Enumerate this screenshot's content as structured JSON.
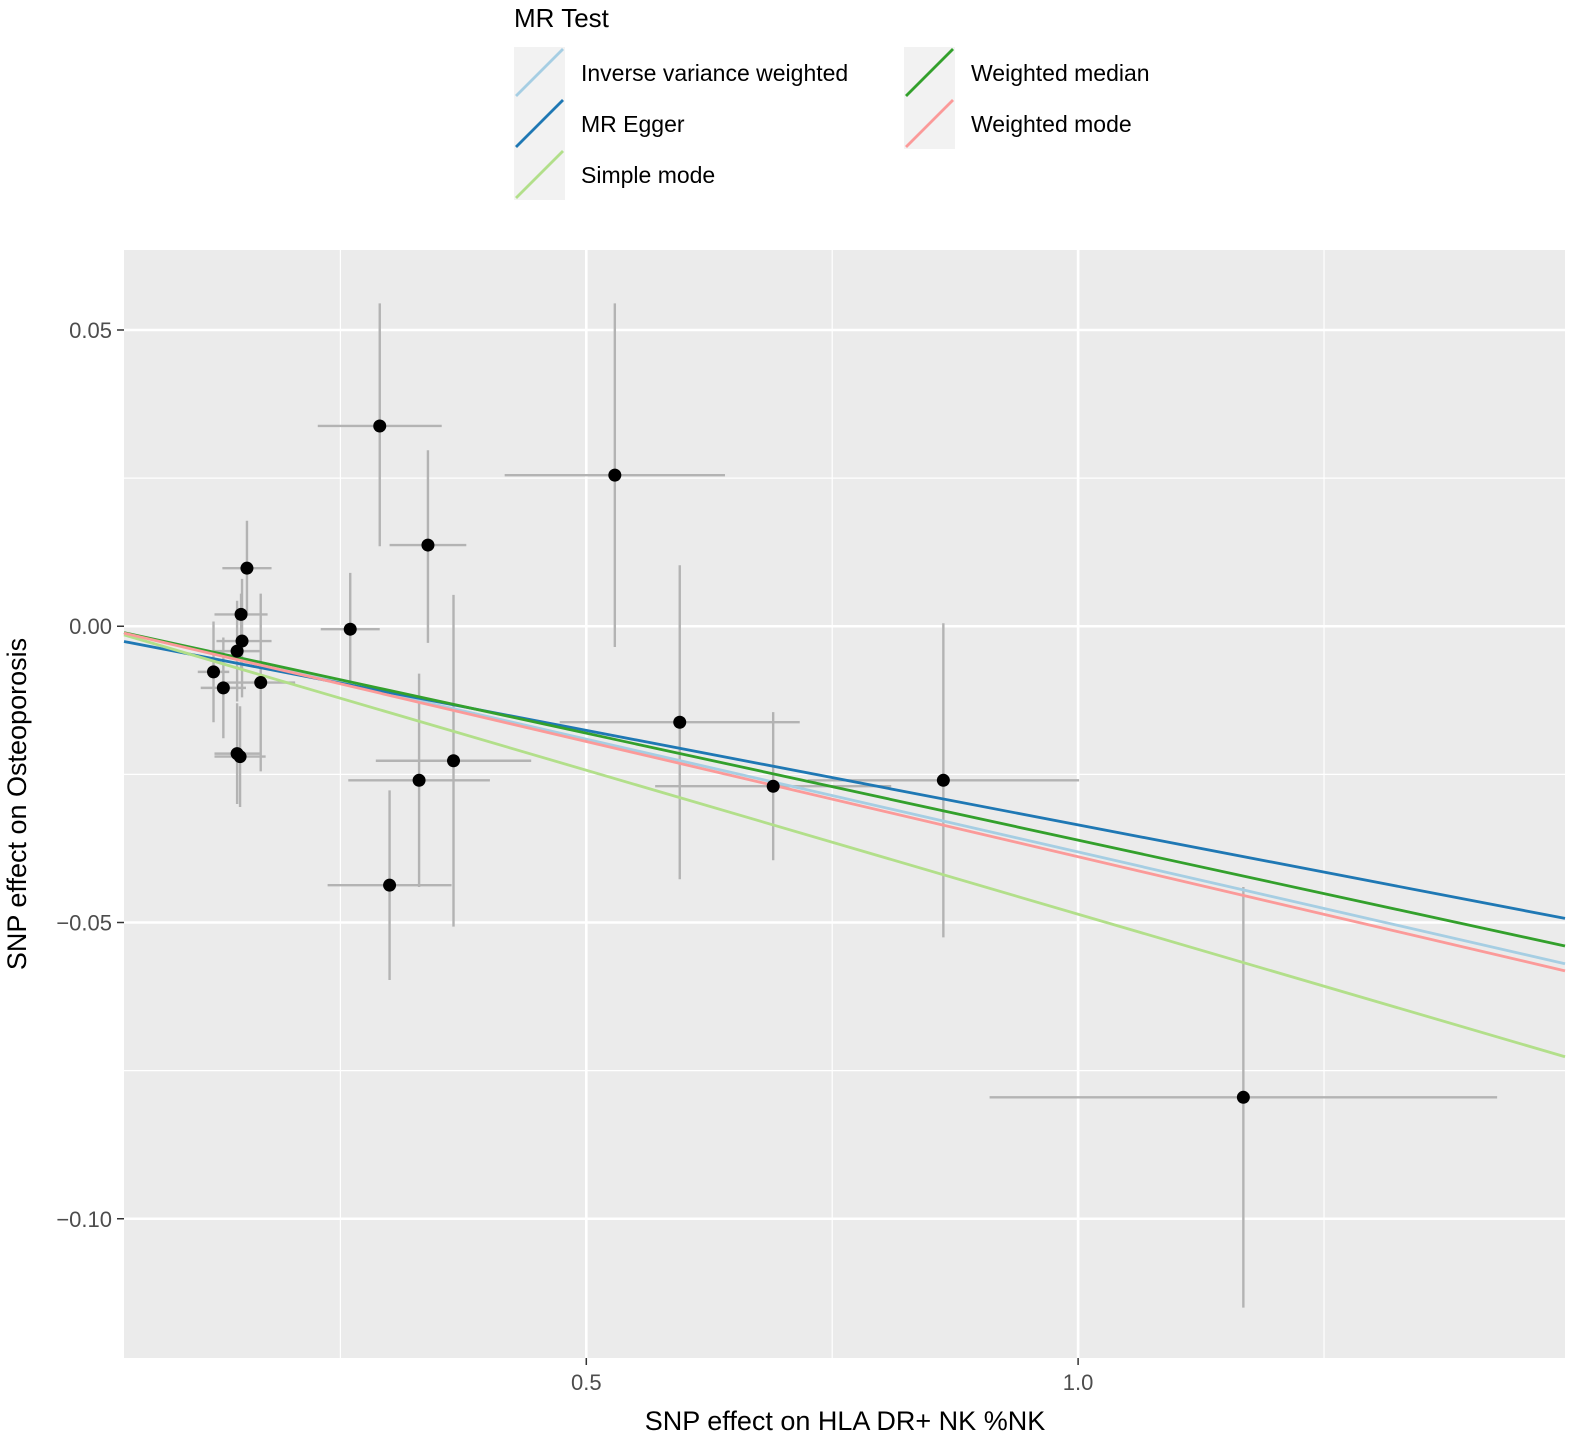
{
  "chart_data": {
    "type": "scatter",
    "title": "",
    "xlabel": "SNP effect on HLA DR+ NK %NK",
    "ylabel": "SNP effect on Osteoporosis",
    "xlim": [
      0.03,
      1.495
    ],
    "ylim": [
      -0.1235,
      0.0635
    ],
    "xticks": [
      0.5,
      1.0
    ],
    "xtick_labels": [
      "0.5",
      "1.0"
    ],
    "yticks": [
      0.05,
      0.0,
      -0.05,
      -0.1
    ],
    "ytick_labels": [
      "0.05",
      "0.00",
      "−0.05",
      "−0.10"
    ],
    "grid": true,
    "legend": {
      "title": "MR Test",
      "position": "top",
      "items": [
        {
          "label": "Inverse variance weighted",
          "color": "#a6cee3"
        },
        {
          "label": "MR Egger",
          "color": "#1f78b4"
        },
        {
          "label": "Simple mode",
          "color": "#b2df8a"
        },
        {
          "label": "Weighted median",
          "color": "#33a02c"
        },
        {
          "label": "Weighted mode",
          "color": "#fb9a99"
        }
      ]
    },
    "lines": [
      {
        "name": "Inverse variance weighted",
        "color": "#a6cee3",
        "intercept": 0.0,
        "slope": -0.0381
      },
      {
        "name": "MR Egger",
        "color": "#1f78b4",
        "intercept": -0.00162,
        "slope": -0.0319
      },
      {
        "name": "Simple mode",
        "color": "#b2df8a",
        "intercept": 0.0,
        "slope": -0.0486
      },
      {
        "name": "Weighted median",
        "color": "#33a02c",
        "intercept": 0.0,
        "slope": -0.0361
      },
      {
        "name": "Weighted mode",
        "color": "#fb9a99",
        "intercept": 0.0,
        "slope": -0.0389
      }
    ],
    "points": [
      {
        "x": 0.121,
        "y": -0.0077,
        "xlo": 0.105,
        "xhi": 0.137,
        "ylo": -0.0162,
        "yhi": 0.0008
      },
      {
        "x": 0.131,
        "y": -0.0104,
        "xlo": 0.108,
        "xhi": 0.154,
        "ylo": -0.0189,
        "yhi": -0.0019
      },
      {
        "x": 0.145,
        "y": -0.0042,
        "xlo": 0.122,
        "xhi": 0.168,
        "ylo": -0.0127,
        "yhi": 0.0043
      },
      {
        "x": 0.149,
        "y": 0.002,
        "xlo": 0.122,
        "xhi": 0.176,
        "ylo": -0.0075,
        "yhi": 0.0055
      },
      {
        "x": 0.15,
        "y": -0.0025,
        "xlo": 0.124,
        "xhi": 0.18,
        "ylo": -0.012,
        "yhi": 0.008
      },
      {
        "x": 0.155,
        "y": 0.0098,
        "xlo": 0.13,
        "xhi": 0.18,
        "ylo": 0.0018,
        "yhi": 0.0178
      },
      {
        "x": 0.145,
        "y": -0.0215,
        "xlo": 0.122,
        "xhi": 0.168,
        "ylo": -0.03,
        "yhi": -0.013
      },
      {
        "x": 0.148,
        "y": -0.022,
        "xlo": 0.122,
        "xhi": 0.174,
        "ylo": -0.0305,
        "yhi": -0.0135
      },
      {
        "x": 0.169,
        "y": -0.0095,
        "xlo": 0.134,
        "xhi": 0.204,
        "ylo": -0.0245,
        "yhi": 0.0055
      },
      {
        "x": 0.26,
        "y": -0.0005,
        "xlo": 0.23,
        "xhi": 0.29,
        "ylo": -0.01,
        "yhi": 0.009
      },
      {
        "x": 0.29,
        "y": 0.0338,
        "xlo": 0.227,
        "xhi": 0.353,
        "ylo": 0.0135,
        "yhi": 0.0545
      },
      {
        "x": 0.3,
        "y": -0.0437,
        "xlo": 0.237,
        "xhi": 0.363,
        "ylo": -0.0597,
        "yhi": -0.0277
      },
      {
        "x": 0.33,
        "y": -0.026,
        "xlo": 0.258,
        "xhi": 0.402,
        "ylo": -0.044,
        "yhi": -0.008
      },
      {
        "x": 0.339,
        "y": 0.0137,
        "xlo": 0.3,
        "xhi": 0.378,
        "ylo": -0.0028,
        "yhi": 0.0297
      },
      {
        "x": 0.365,
        "y": -0.0227,
        "xlo": 0.286,
        "xhi": 0.444,
        "ylo": -0.0507,
        "yhi": 0.0053
      },
      {
        "x": 0.529,
        "y": 0.0255,
        "xlo": 0.417,
        "xhi": 0.641,
        "ylo": -0.0035,
        "yhi": 0.0545
      },
      {
        "x": 0.595,
        "y": -0.0162,
        "xlo": 0.473,
        "xhi": 0.717,
        "ylo": -0.0427,
        "yhi": 0.0103
      },
      {
        "x": 0.69,
        "y": -0.027,
        "xlo": 0.57,
        "xhi": 0.81,
        "ylo": -0.0395,
        "yhi": -0.0145
      },
      {
        "x": 0.863,
        "y": -0.026,
        "xlo": 0.725,
        "xhi": 1.001,
        "ylo": -0.0525,
        "yhi": 0.0005
      },
      {
        "x": 1.168,
        "y": -0.0795,
        "xlo": 0.91,
        "xhi": 1.426,
        "ylo": -0.115,
        "yhi": -0.044
      }
    ]
  }
}
